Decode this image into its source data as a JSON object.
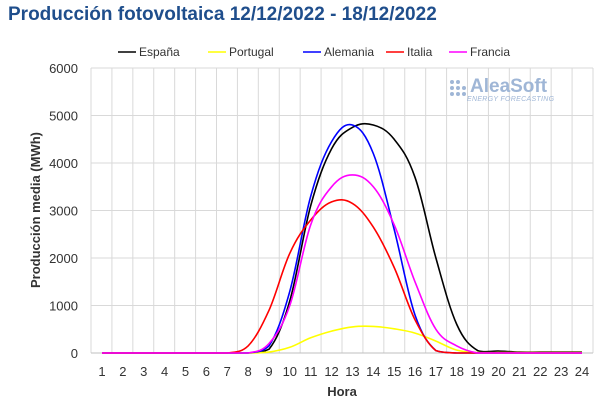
{
  "chart_data": {
    "type": "line",
    "title": "Producción fotovoltaica 12/12/2022 - 18/12/2022",
    "xlabel": "Hora",
    "ylabel": "Producción media (MWh)",
    "ylim": [
      0,
      6000
    ],
    "yticks": [
      0,
      1000,
      2000,
      3000,
      4000,
      5000,
      6000
    ],
    "ytick_labels": [
      "0",
      "1000",
      "2000",
      "3000",
      "4000",
      "5000",
      "6000"
    ],
    "x": [
      1,
      2,
      3,
      4,
      5,
      6,
      7,
      8,
      9,
      10,
      11,
      12,
      13,
      14,
      15,
      16,
      17,
      18,
      19,
      20,
      21,
      22,
      23,
      24
    ],
    "x_labels": [
      "1",
      "2",
      "3",
      "4",
      "5",
      "6",
      "7",
      "8",
      "9",
      "10",
      "11",
      "12",
      "13",
      "14",
      "15",
      "16",
      "17",
      "18",
      "19",
      "20",
      "21",
      "22",
      "23",
      "24"
    ],
    "grid": true,
    "legend_position": "top",
    "series": [
      {
        "name": "España",
        "color": "#000000",
        "values": [
          0,
          0,
          0,
          0,
          0,
          0,
          0,
          0,
          80,
          1100,
          3100,
          4300,
          4750,
          4800,
          4500,
          3700,
          2000,
          600,
          50,
          40,
          20,
          20,
          20,
          20
        ]
      },
      {
        "name": "Portugal",
        "color": "#ffff00",
        "values": [
          0,
          0,
          0,
          0,
          0,
          0,
          0,
          0,
          20,
          120,
          320,
          460,
          550,
          560,
          510,
          420,
          250,
          60,
          10,
          10,
          10,
          10,
          10,
          10
        ]
      },
      {
        "name": "Alemania",
        "color": "#0000ff",
        "values": [
          0,
          0,
          0,
          0,
          0,
          0,
          0,
          0,
          150,
          1300,
          3300,
          4450,
          4800,
          4200,
          2600,
          800,
          50,
          0,
          0,
          0,
          0,
          0,
          0,
          0
        ]
      },
      {
        "name": "Italia",
        "color": "#ff0000",
        "values": [
          0,
          0,
          0,
          0,
          0,
          0,
          0,
          150,
          900,
          2100,
          2800,
          3180,
          3150,
          2650,
          1800,
          700,
          50,
          0,
          0,
          0,
          0,
          0,
          0,
          0
        ]
      },
      {
        "name": "Francia",
        "color": "#ff00ff",
        "values": [
          0,
          0,
          0,
          0,
          0,
          0,
          0,
          0,
          200,
          1000,
          2700,
          3500,
          3750,
          3500,
          2700,
          1500,
          500,
          150,
          0,
          0,
          0,
          0,
          0,
          0
        ]
      }
    ]
  },
  "logo": {
    "name": "AleaSoft",
    "tagline": "ENERGY FORECASTING"
  }
}
